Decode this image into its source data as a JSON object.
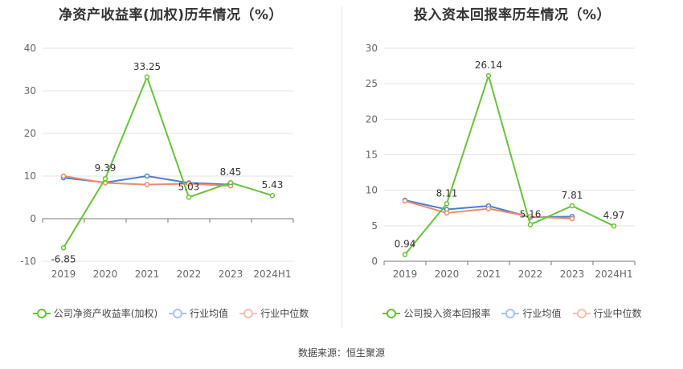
{
  "charts": [
    {
      "title": "净资产收益率(加权)历年情况（%）",
      "legend": [
        "公司净资产收益率(加权)",
        "行业均值",
        "行业中位数"
      ]
    },
    {
      "title": "投入资本回报率历年情况（%）",
      "legend": [
        "公司投入资本回报率",
        "行业均值",
        "行业中位数"
      ]
    }
  ],
  "source": "数据来源：恒生聚源",
  "colors": {
    "company": "#67c23a",
    "avg": "#4a7fd0",
    "median": "#f0896a",
    "grid": "#e3e3e3",
    "axis": "#777777"
  },
  "chart_data": [
    {
      "type": "line",
      "title": "净资产收益率(加权)历年情况（%）",
      "categories": [
        "2019",
        "2020",
        "2021",
        "2022",
        "2023",
        "2024H1"
      ],
      "ylim": [
        -10,
        40
      ],
      "yticks": [
        -10,
        0,
        10,
        20,
        30,
        40
      ],
      "grid": true,
      "legend_position": "bottom",
      "series": [
        {
          "name": "公司净资产收益率(加权)",
          "values": [
            -6.85,
            9.39,
            33.25,
            5.03,
            8.45,
            5.43
          ],
          "labels": [
            "-6.85",
            "9.39",
            "33.25",
            "5.03",
            "8.45",
            "5.43"
          ]
        },
        {
          "name": "行业均值",
          "values": [
            9.6,
            8.5,
            10.0,
            8.4,
            8.0,
            null
          ]
        },
        {
          "name": "行业中位数",
          "values": [
            10.0,
            8.4,
            8.0,
            8.2,
            7.7,
            null
          ]
        }
      ]
    },
    {
      "type": "line",
      "title": "投入资本回报率历年情况（%）",
      "categories": [
        "2019",
        "2020",
        "2021",
        "2022",
        "2023",
        "2024H1"
      ],
      "ylim": [
        0,
        30
      ],
      "yticks": [
        0,
        5,
        10,
        15,
        20,
        25,
        30
      ],
      "grid": true,
      "legend_position": "bottom",
      "series": [
        {
          "name": "公司投入资本回报率",
          "values": [
            0.94,
            8.11,
            26.14,
            5.16,
            7.81,
            4.97
          ],
          "labels": [
            "0.94",
            "8.11",
            "26.14",
            "5.16",
            "7.81",
            "4.97"
          ]
        },
        {
          "name": "行业均值",
          "values": [
            8.6,
            7.3,
            7.8,
            6.2,
            6.3,
            null
          ]
        },
        {
          "name": "行业中位数",
          "values": [
            8.5,
            6.8,
            7.4,
            6.3,
            6.0,
            null
          ]
        }
      ]
    }
  ]
}
